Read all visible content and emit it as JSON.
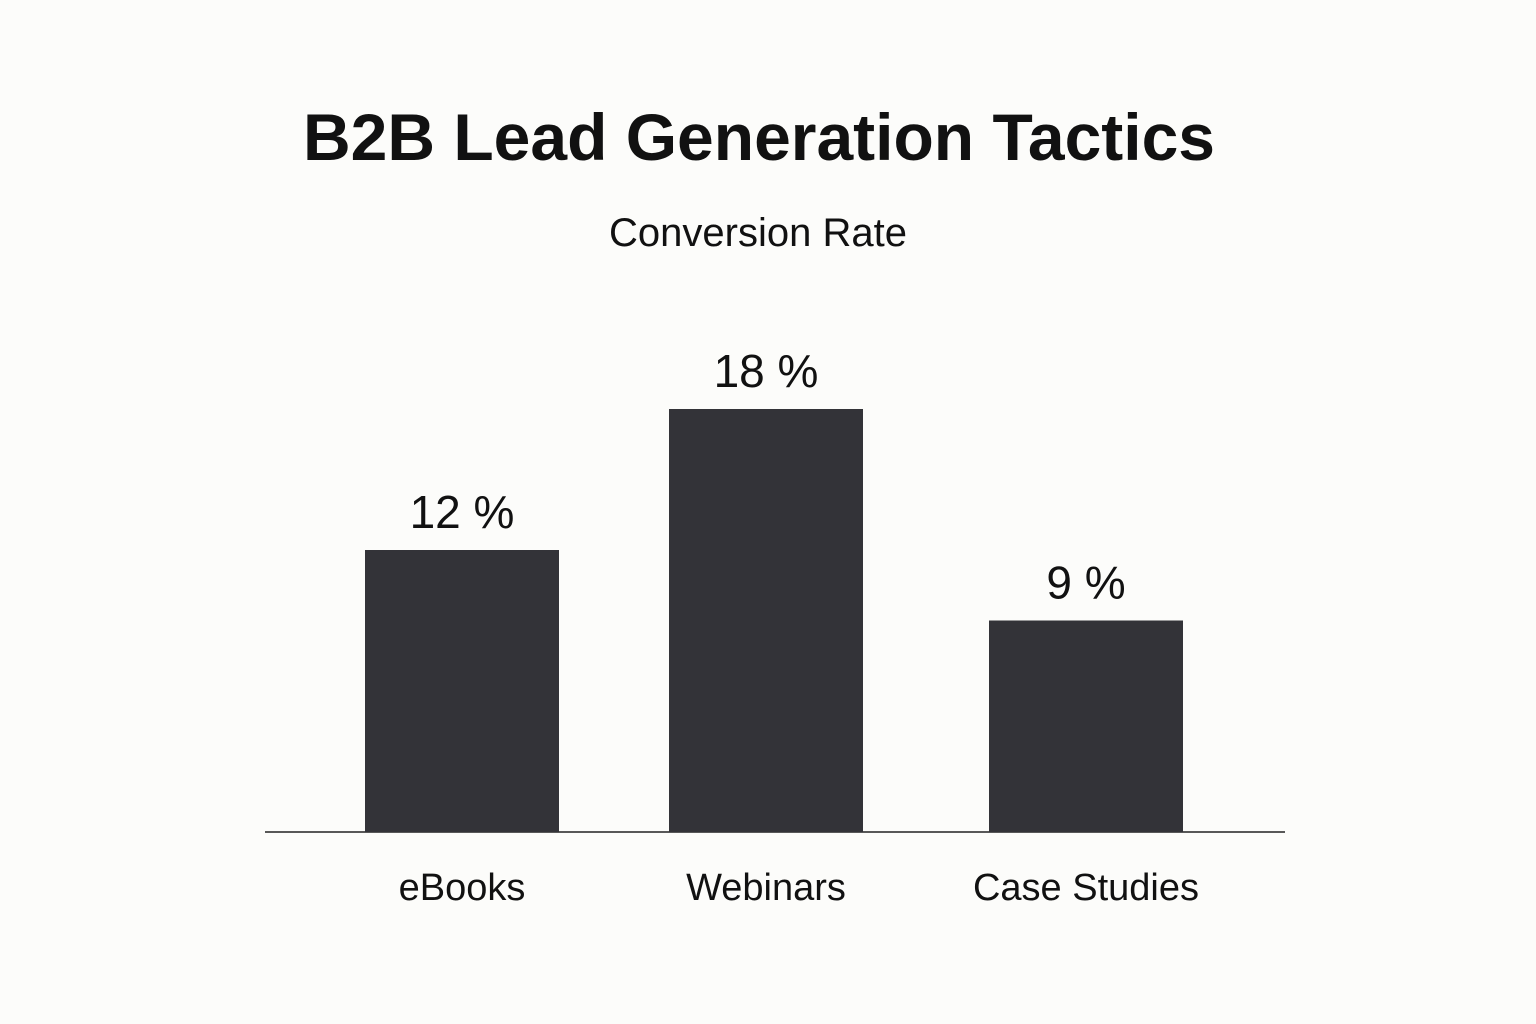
{
  "chart_data": {
    "type": "bar",
    "title": "B2B Lead Generation Tactics",
    "subtitle": "Conversion Rate",
    "categories": [
      "eBooks",
      "Webinars",
      "Case Studies"
    ],
    "values": [
      12,
      18,
      9
    ],
    "value_labels": [
      "12 %",
      "18 %",
      "9 %"
    ],
    "ylim": [
      0,
      18
    ],
    "grid": false,
    "legend": "none",
    "colors": {
      "bar": "#333338",
      "text": "#111111",
      "axis": "#222222",
      "background": "#fcfcfa"
    }
  }
}
